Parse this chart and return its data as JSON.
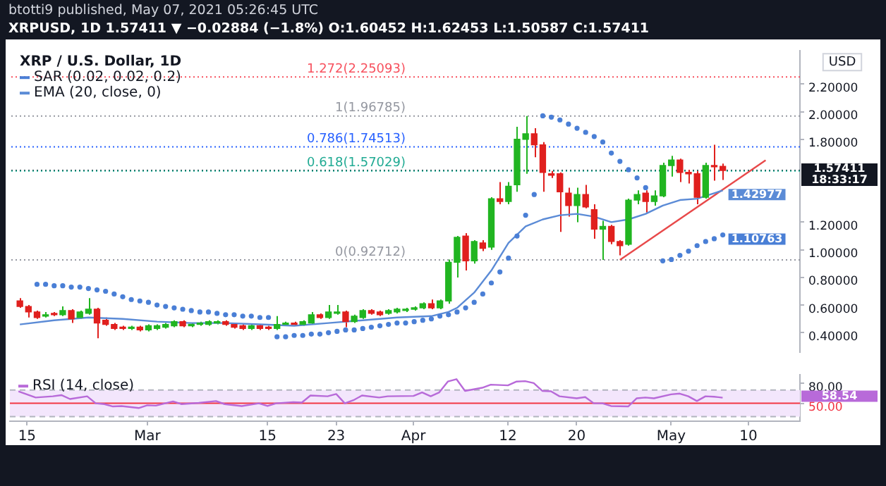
{
  "chart_data": [
    {
      "type": "candlestick",
      "title": "XRP / U.S. Dollar, 1D",
      "ylabel": "USD",
      "annotations": [
        "btotti9 published, May 07, 2021 05:26:45 UTC",
        "XRPUSD, 1D  1.57411 ▼ −0.02884 (−1.8%)  O:1.60452  H:1.62453  L:1.50587  C:1.57411",
        {
          "text": "1.57411",
          "x": "2021-05-16",
          "y": 1.57411
        },
        {
          "text": "18:33:17",
          "x": "2021-05-16",
          "y": 1.57411
        }
      ],
      "x": [
        "2021-02-14",
        "2021-02-15",
        "2021-02-16",
        "2021-02-17",
        "2021-02-18",
        "2021-02-19",
        "2021-02-20",
        "2021-02-21",
        "2021-02-22",
        "2021-02-23",
        "2021-02-24",
        "2021-02-25",
        "2021-02-26",
        "2021-02-27",
        "2021-02-28",
        "2021-03-01",
        "2021-03-02",
        "2021-03-03",
        "2021-03-04",
        "2021-03-05",
        "2021-03-06",
        "2021-03-07",
        "2021-03-08",
        "2021-03-09",
        "2021-03-10",
        "2021-03-11",
        "2021-03-12",
        "2021-03-13",
        "2021-03-14",
        "2021-03-15",
        "2021-03-16",
        "2021-03-17",
        "2021-03-18",
        "2021-03-19",
        "2021-03-20",
        "2021-03-21",
        "2021-03-22",
        "2021-03-23",
        "2021-03-24",
        "2021-03-25",
        "2021-03-26",
        "2021-03-27",
        "2021-03-28",
        "2021-03-29",
        "2021-03-30",
        "2021-03-31",
        "2021-04-01",
        "2021-04-02",
        "2021-04-03",
        "2021-04-04",
        "2021-04-05",
        "2021-04-06",
        "2021-04-07",
        "2021-04-08",
        "2021-04-09",
        "2021-04-10",
        "2021-04-11",
        "2021-04-12",
        "2021-04-13",
        "2021-04-14",
        "2021-04-15",
        "2021-04-16",
        "2021-04-17",
        "2021-04-18",
        "2021-04-19",
        "2021-04-20",
        "2021-04-21",
        "2021-04-22",
        "2021-04-23",
        "2021-04-24",
        "2021-04-25",
        "2021-04-26",
        "2021-04-27",
        "2021-04-28",
        "2021-04-29",
        "2021-04-30",
        "2021-05-01",
        "2021-05-02",
        "2021-05-03",
        "2021-05-04",
        "2021-05-05",
        "2021-05-06",
        "2021-05-07"
      ],
      "ohlc": [
        [
          0.63,
          0.65,
          0.58,
          0.59
        ],
        [
          0.59,
          0.6,
          0.51,
          0.55
        ],
        [
          0.55,
          0.56,
          0.5,
          0.51
        ],
        [
          0.52,
          0.55,
          0.51,
          0.53
        ],
        [
          0.54,
          0.55,
          0.52,
          0.53
        ],
        [
          0.53,
          0.59,
          0.52,
          0.56
        ],
        [
          0.56,
          0.57,
          0.47,
          0.5
        ],
        [
          0.51,
          0.56,
          0.5,
          0.55
        ],
        [
          0.54,
          0.65,
          0.53,
          0.57
        ],
        [
          0.57,
          0.58,
          0.36,
          0.47
        ],
        [
          0.49,
          0.51,
          0.45,
          0.46
        ],
        [
          0.46,
          0.47,
          0.42,
          0.43
        ],
        [
          0.44,
          0.45,
          0.42,
          0.43
        ],
        [
          0.43,
          0.45,
          0.42,
          0.44
        ],
        [
          0.44,
          0.45,
          0.41,
          0.42
        ],
        [
          0.42,
          0.46,
          0.41,
          0.45
        ],
        [
          0.43,
          0.46,
          0.42,
          0.45
        ],
        [
          0.44,
          0.47,
          0.43,
          0.46
        ],
        [
          0.45,
          0.49,
          0.44,
          0.48
        ],
        [
          0.48,
          0.49,
          0.44,
          0.45
        ],
        [
          0.45,
          0.47,
          0.44,
          0.46
        ],
        [
          0.46,
          0.48,
          0.45,
          0.47
        ],
        [
          0.46,
          0.49,
          0.45,
          0.48
        ],
        [
          0.47,
          0.49,
          0.46,
          0.48
        ],
        [
          0.48,
          0.49,
          0.45,
          0.46
        ],
        [
          0.46,
          0.47,
          0.43,
          0.44
        ],
        [
          0.45,
          0.46,
          0.42,
          0.43
        ],
        [
          0.43,
          0.46,
          0.42,
          0.45
        ],
        [
          0.45,
          0.46,
          0.42,
          0.43
        ],
        [
          0.44,
          0.45,
          0.42,
          0.43
        ],
        [
          0.43,
          0.52,
          0.42,
          0.46
        ],
        [
          0.46,
          0.48,
          0.45,
          0.47
        ],
        [
          0.47,
          0.48,
          0.45,
          0.46
        ],
        [
          0.46,
          0.49,
          0.45,
          0.48
        ],
        [
          0.47,
          0.55,
          0.46,
          0.53
        ],
        [
          0.53,
          0.54,
          0.5,
          0.51
        ],
        [
          0.51,
          0.6,
          0.5,
          0.55
        ],
        [
          0.54,
          0.6,
          0.53,
          0.55
        ],
        [
          0.55,
          0.56,
          0.44,
          0.48
        ],
        [
          0.48,
          0.53,
          0.47,
          0.52
        ],
        [
          0.51,
          0.57,
          0.5,
          0.56
        ],
        [
          0.56,
          0.57,
          0.53,
          0.54
        ],
        [
          0.55,
          0.56,
          0.52,
          0.53
        ],
        [
          0.54,
          0.57,
          0.53,
          0.56
        ],
        [
          0.55,
          0.58,
          0.54,
          0.57
        ],
        [
          0.56,
          0.58,
          0.55,
          0.57
        ],
        [
          0.57,
          0.59,
          0.56,
          0.58
        ],
        [
          0.58,
          0.62,
          0.57,
          0.61
        ],
        [
          0.61,
          0.64,
          0.57,
          0.58
        ],
        [
          0.58,
          0.64,
          0.57,
          0.63
        ],
        [
          0.63,
          0.93,
          0.61,
          0.91
        ],
        [
          0.91,
          1.1,
          0.8,
          1.09
        ],
        [
          1.1,
          1.12,
          0.85,
          0.92
        ],
        [
          0.92,
          1.07,
          0.9,
          1.06
        ],
        [
          1.05,
          1.07,
          0.99,
          1.01
        ],
        [
          1.02,
          1.38,
          1.0,
          1.37
        ],
        [
          1.37,
          1.49,
          1.33,
          1.35
        ],
        [
          1.35,
          1.49,
          1.33,
          1.46
        ],
        [
          1.47,
          1.89,
          1.42,
          1.8
        ],
        [
          1.8,
          1.96785,
          1.55,
          1.84
        ],
        [
          1.84,
          1.88,
          1.67,
          1.76
        ],
        [
          1.76,
          1.78,
          1.42,
          1.56
        ],
        [
          1.55,
          1.57,
          1.52,
          1.54
        ],
        [
          1.55,
          1.56,
          1.13,
          1.42
        ],
        [
          1.41,
          1.45,
          1.24,
          1.32
        ],
        [
          1.32,
          1.45,
          1.2,
          1.4
        ],
        [
          1.4,
          1.47,
          1.3,
          1.31
        ],
        [
          1.29,
          1.33,
          1.08,
          1.15
        ],
        [
          1.15,
          1.21,
          0.92712,
          1.17
        ],
        [
          1.17,
          1.18,
          1.04,
          1.06
        ],
        [
          1.06,
          1.07,
          0.96,
          1.03
        ],
        [
          1.04,
          1.37,
          1.03,
          1.36
        ],
        [
          1.36,
          1.43,
          1.33,
          1.4
        ],
        [
          1.41,
          1.43,
          1.27,
          1.35
        ],
        [
          1.35,
          1.43,
          1.32,
          1.39
        ],
        [
          1.39,
          1.63,
          1.38,
          1.61
        ],
        [
          1.61,
          1.68,
          1.53,
          1.65
        ],
        [
          1.65,
          1.66,
          1.49,
          1.56
        ],
        [
          1.56,
          1.58,
          1.48,
          1.55
        ],
        [
          1.55,
          1.57,
          1.33,
          1.38
        ],
        [
          1.38,
          1.63,
          1.37,
          1.61
        ],
        [
          1.61,
          1.76,
          1.5,
          1.6
        ],
        [
          1.60452,
          1.62453,
          1.50587,
          1.57411
        ]
      ],
      "colors": [
        "#e0201e",
        "#e0201e",
        "#e0201e",
        "#21b521",
        "#e0201e",
        "#21b521",
        "#e0201e",
        "#21b521",
        "#21b521",
        "#e0201e",
        "#e0201e",
        "#e0201e",
        "#e0201e",
        "#21b521",
        "#e0201e",
        "#21b521",
        "#21b521",
        "#21b521",
        "#21b521",
        "#e0201e",
        "#21b521",
        "#21b521",
        "#21b521",
        "#21b521",
        "#e0201e",
        "#e0201e",
        "#e0201e",
        "#21b521",
        "#e0201e",
        "#e0201e",
        "#21b521",
        "#21b521",
        "#e0201e",
        "#21b521",
        "#21b521",
        "#e0201e",
        "#21b521",
        "#21b521",
        "#e0201e",
        "#21b521",
        "#21b521",
        "#e0201e",
        "#e0201e",
        "#21b521",
        "#21b521",
        "#21b521",
        "#21b521",
        "#21b521",
        "#e0201e",
        "#21b521",
        "#21b521",
        "#21b521",
        "#e0201e",
        "#21b521",
        "#e0201e",
        "#21b521",
        "#e0201e",
        "#21b521",
        "#21b521",
        "#21b521",
        "#e0201e",
        "#e0201e",
        "#e0201e",
        "#e0201e",
        "#e0201e",
        "#21b521",
        "#e0201e",
        "#e0201e",
        "#21b521",
        "#e0201e",
        "#e0201e",
        "#21b521",
        "#21b521",
        "#e0201e",
        "#21b521",
        "#21b521",
        "#21b521",
        "#e0201e",
        "#e0201e",
        "#e0201e",
        "#21b521",
        "#e0201e",
        "#e0201e"
      ],
      "series": [
        {
          "type": "scatter",
          "name": "SAR (0.02, 0.02, 0.2)",
          "color": "#4a7fd6",
          "marker": "circle",
          "x": [
            "2021-02-16",
            "2021-02-17",
            "2021-02-18",
            "2021-02-19",
            "2021-02-20",
            "2021-02-21",
            "2021-02-22",
            "2021-02-23",
            "2021-02-24",
            "2021-02-25",
            "2021-02-26",
            "2021-02-27",
            "2021-02-28",
            "2021-03-01",
            "2021-03-02",
            "2021-03-03",
            "2021-03-04",
            "2021-03-05",
            "2021-03-06",
            "2021-03-07",
            "2021-03-08",
            "2021-03-09",
            "2021-03-10",
            "2021-03-11",
            "2021-03-12",
            "2021-03-13",
            "2021-03-14",
            "2021-03-15",
            "2021-03-16",
            "2021-03-17",
            "2021-03-18",
            "2021-03-19",
            "2021-03-20",
            "2021-03-21",
            "2021-03-22",
            "2021-03-23",
            "2021-03-24",
            "2021-03-25",
            "2021-03-26",
            "2021-03-27",
            "2021-03-28",
            "2021-03-29",
            "2021-03-30",
            "2021-03-31",
            "2021-04-01",
            "2021-04-02",
            "2021-04-03",
            "2021-04-04",
            "2021-04-05",
            "2021-04-06",
            "2021-04-07",
            "2021-04-08",
            "2021-04-09",
            "2021-04-10",
            "2021-04-11",
            "2021-04-12",
            "2021-04-13",
            "2021-04-14",
            "2021-04-15",
            "2021-04-16",
            "2021-04-17",
            "2021-04-18",
            "2021-04-19",
            "2021-04-20",
            "2021-04-21",
            "2021-04-22",
            "2021-04-23",
            "2021-04-24",
            "2021-04-25",
            "2021-04-26",
            "2021-04-27",
            "2021-04-28",
            "2021-04-30",
            "2021-05-01",
            "2021-05-02",
            "2021-05-03",
            "2021-05-04",
            "2021-05-05",
            "2021-05-06",
            "2021-05-07"
          ],
          "values": [
            0.75,
            0.75,
            0.74,
            0.74,
            0.73,
            0.73,
            0.72,
            0.71,
            0.7,
            0.68,
            0.66,
            0.64,
            0.63,
            0.62,
            0.6,
            0.59,
            0.58,
            0.57,
            0.56,
            0.55,
            0.55,
            0.54,
            0.53,
            0.53,
            0.52,
            0.52,
            0.51,
            0.51,
            0.37,
            0.37,
            0.38,
            0.38,
            0.39,
            0.39,
            0.4,
            0.41,
            0.42,
            0.42,
            0.43,
            0.44,
            0.45,
            0.46,
            0.47,
            0.47,
            0.48,
            0.49,
            0.5,
            0.52,
            0.53,
            0.55,
            0.58,
            0.62,
            0.68,
            0.76,
            0.84,
            0.94,
            1.1,
            1.25,
            1.4,
            1.97,
            1.96,
            1.94,
            1.91,
            1.88,
            1.85,
            1.82,
            1.78,
            1.7,
            1.64,
            1.58,
            1.52,
            1.45,
            0.92,
            0.93,
            0.96,
            0.99,
            1.03,
            1.06,
            1.08,
            1.10763
          ],
          "value_labels": [
            null,
            null,
            null,
            null,
            null,
            null,
            null,
            null,
            null,
            null,
            null,
            null,
            null,
            null,
            null,
            null,
            null,
            null,
            null,
            null,
            null,
            null,
            null,
            null,
            null,
            null,
            null,
            null,
            null,
            null,
            null,
            null,
            null,
            null,
            null,
            null,
            null,
            null,
            null,
            null,
            null,
            null,
            null,
            null,
            null,
            null,
            null,
            null,
            null,
            null,
            null,
            null,
            null,
            null,
            null,
            null,
            null,
            null,
            null,
            null,
            null,
            null,
            null,
            null,
            null,
            null,
            null,
            null,
            null,
            null,
            null,
            null,
            null,
            null,
            null,
            null,
            null,
            null,
            null,
            "1.10763"
          ]
        },
        {
          "type": "line",
          "name": "EMA (20, close, 0)",
          "color": "#5b8bd6",
          "x": [
            "2021-02-14",
            "2021-02-18",
            "2021-02-22",
            "2021-02-26",
            "2021-03-02",
            "2021-03-06",
            "2021-03-10",
            "2021-03-14",
            "2021-03-18",
            "2021-03-22",
            "2021-03-26",
            "2021-03-30",
            "2021-04-03",
            "2021-04-05",
            "2021-04-06",
            "2021-04-08",
            "2021-04-10",
            "2021-04-12",
            "2021-04-14",
            "2021-04-16",
            "2021-04-18",
            "2021-04-20",
            "2021-04-22",
            "2021-04-24",
            "2021-04-26",
            "2021-04-28",
            "2021-04-30",
            "2021-05-02",
            "2021-05-04",
            "2021-05-07"
          ],
          "values": [
            0.46,
            0.49,
            0.51,
            0.5,
            0.48,
            0.47,
            0.47,
            0.46,
            0.45,
            0.47,
            0.49,
            0.51,
            0.52,
            0.55,
            0.58,
            0.69,
            0.85,
            1.05,
            1.17,
            1.22,
            1.25,
            1.26,
            1.24,
            1.2,
            1.22,
            1.26,
            1.32,
            1.36,
            1.37,
            1.42977
          ],
          "value_labels": [
            null,
            null,
            null,
            null,
            null,
            null,
            null,
            null,
            null,
            null,
            null,
            null,
            null,
            null,
            null,
            null,
            null,
            null,
            null,
            null,
            null,
            null,
            null,
            null,
            null,
            null,
            null,
            null,
            null,
            "1.42977"
          ]
        },
        {
          "type": "line",
          "color": "#e8494a",
          "x": [
            "2021-04-25",
            "2021-05-12"
          ],
          "values": [
            0.927,
            1.648
          ]
        }
      ],
      "ref_lines": [
        {
          "axis": "y",
          "value": 1.57411,
          "color": "#131722",
          "line_style": "dotted"
        },
        {
          "axis": "y",
          "value": 2.25093,
          "label": "1.272(2.25093)",
          "color": "#f7525f",
          "line_style": "dotted"
        },
        {
          "axis": "y",
          "value": 1.96785,
          "label": "1(1.96785)",
          "color": "#9598a1",
          "line_style": "dotted"
        },
        {
          "axis": "y",
          "value": 1.74513,
          "label": "0.786(1.74513)",
          "color": "#2962ff",
          "line_style": "dotted"
        },
        {
          "axis": "y",
          "value": 1.57029,
          "label": "0.618(1.57029)",
          "color": "#22ab94",
          "line_style": "dotted"
        },
        {
          "axis": "y",
          "value": 0.92712,
          "label": "0(0.92712)",
          "color": "#9598a1",
          "line_style": "dotted"
        }
      ],
      "xlim": [
        "2021-02-13",
        "2021-05-16"
      ],
      "ylim": [
        0.26,
        2.44
      ],
      "yticks": [
        {
          "value": 0.4,
          "label": "0.40000"
        },
        {
          "value": 0.6,
          "label": "0.60000"
        },
        {
          "value": 0.8,
          "label": "0.80000"
        },
        {
          "value": 1.0,
          "label": "1.00000"
        },
        {
          "value": 1.2,
          "label": "1.20000"
        },
        {
          "value": 1.8,
          "label": "1.80000"
        },
        {
          "value": 2.0,
          "label": "2.00000"
        },
        {
          "value": 2.2,
          "label": "2.20000"
        }
      ],
      "tick_labels": "y",
      "grid": false,
      "legend": "top left"
    },
    {
      "type": "line",
      "grid": false,
      "legend": "top left",
      "series": [
        {
          "name": "RSI (14, close)",
          "color": "#b86ad9",
          "x": [
            "2021-02-14",
            "2021-02-16",
            "2021-02-18",
            "2021-02-19",
            "2021-02-20",
            "2021-02-22",
            "2021-02-23",
            "2021-02-24",
            "2021-02-25",
            "2021-02-26",
            "2021-02-28",
            "2021-03-01",
            "2021-03-02",
            "2021-03-04",
            "2021-03-05",
            "2021-03-07",
            "2021-03-09",
            "2021-03-10",
            "2021-03-12",
            "2021-03-14",
            "2021-03-15",
            "2021-03-16",
            "2021-03-18",
            "2021-03-19",
            "2021-03-20",
            "2021-03-22",
            "2021-03-23",
            "2021-03-24",
            "2021-03-25",
            "2021-03-26",
            "2021-03-28",
            "2021-03-29",
            "2021-04-01",
            "2021-04-02",
            "2021-04-03",
            "2021-04-04",
            "2021-04-05",
            "2021-04-06",
            "2021-04-07",
            "2021-04-09",
            "2021-04-10",
            "2021-04-12",
            "2021-04-13",
            "2021-04-14",
            "2021-04-15",
            "2021-04-16",
            "2021-04-17",
            "2021-04-18",
            "2021-04-20",
            "2021-04-21",
            "2021-04-22",
            "2021-04-23",
            "2021-04-24",
            "2021-04-26",
            "2021-04-27",
            "2021-04-28",
            "2021-04-29",
            "2021-05-01",
            "2021-05-02",
            "2021-05-03",
            "2021-05-04",
            "2021-05-05",
            "2021-05-06",
            "2021-05-07"
          ],
          "values": [
            68.2,
            58.8,
            60.6,
            62.4,
            56.5,
            60.6,
            50,
            48.8,
            45.3,
            45.9,
            42.9,
            47.1,
            46.5,
            52.9,
            48.8,
            50.6,
            53.5,
            48.8,
            45.9,
            50,
            45.9,
            50,
            51.8,
            51.2,
            61.8,
            60.6,
            64.1,
            50,
            54.7,
            61.8,
            58.8,
            60.6,
            61.2,
            66.5,
            60.6,
            66.5,
            82.9,
            86.5,
            68.8,
            73.5,
            78.2,
            77.1,
            82.9,
            83.5,
            80.6,
            68.8,
            68.2,
            60.6,
            57.6,
            59.4,
            50,
            50,
            45.9,
            45.3,
            57.6,
            58.8,
            57.6,
            63.5,
            64.7,
            60.6,
            53.5,
            60.6,
            60,
            58.54
          ]
        }
      ],
      "annotations": [
        {
          "text": "58.54",
          "x": "2021-05-16",
          "y": 58.54
        }
      ],
      "bands": [
        {
          "axis": "y",
          "from": 30,
          "to": 70,
          "color": "#f3e6fc"
        }
      ],
      "ref_lines": [
        {
          "axis": "y",
          "value": 70,
          "color": "#b2b5be",
          "line_style": "dashed"
        },
        {
          "axis": "y",
          "value": 30,
          "color": "#b2b5be",
          "line_style": "dashed"
        },
        {
          "axis": "y",
          "value": 50,
          "color": "#f23645",
          "line_style": "solid"
        }
      ],
      "xlim": [
        "2021-02-13",
        "2021-05-16"
      ],
      "ylim": [
        23,
        93
      ],
      "yticks": [
        {
          "value": 80,
          "label": "80.00"
        },
        {
          "value": 50,
          "label": "50.00"
        }
      ],
      "xticks": [
        {
          "value": "2021-02-15",
          "label": "15"
        },
        {
          "value": "2021-03-01",
          "label": "Mar"
        },
        {
          "value": "2021-03-15",
          "label": "15"
        },
        {
          "value": "2021-03-23",
          "label": "23"
        },
        {
          "value": "2021-04-01",
          "label": "Apr"
        },
        {
          "value": "2021-04-12",
          "label": "12"
        },
        {
          "value": "2021-04-20",
          "label": "20"
        },
        {
          "value": "2021-05-01",
          "label": "May"
        },
        {
          "value": "2021-05-10",
          "label": "10"
        }
      ]
    }
  ]
}
